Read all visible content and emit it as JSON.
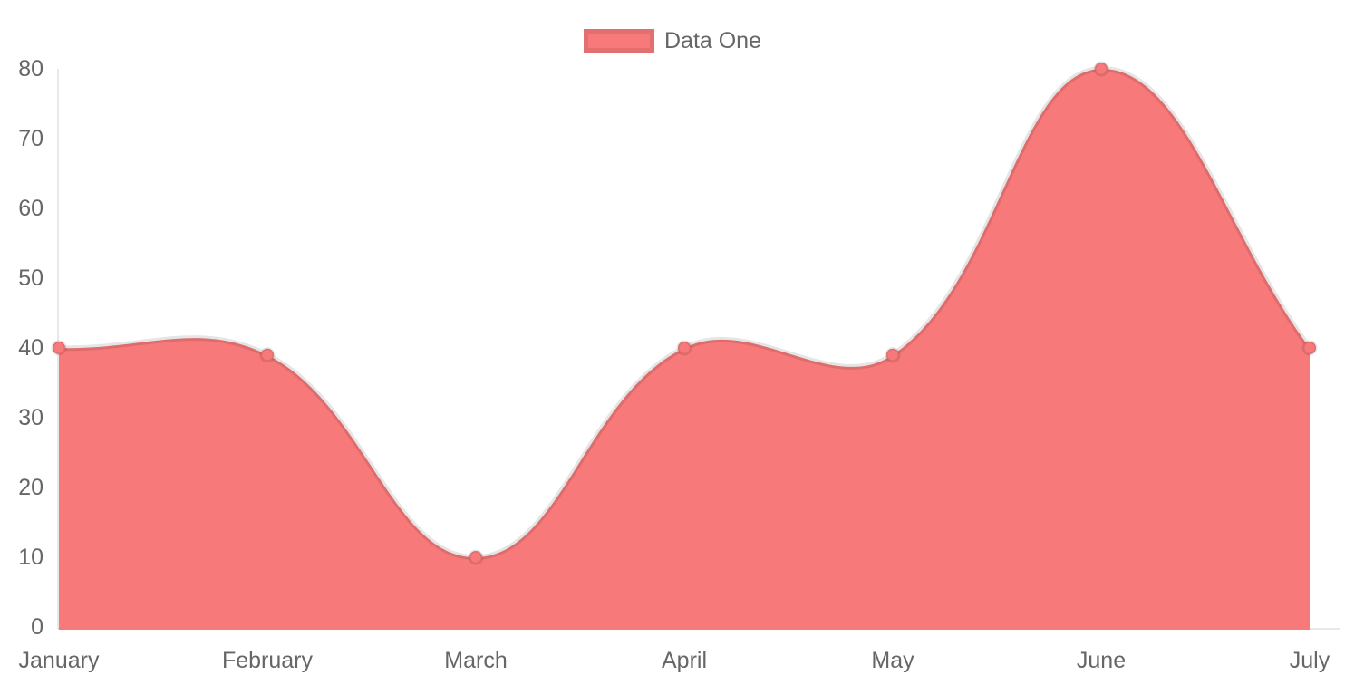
{
  "chart_data": {
    "type": "area",
    "title": "",
    "categories": [
      "January",
      "February",
      "March",
      "April",
      "May",
      "June",
      "July"
    ],
    "series": [
      {
        "name": "Data One",
        "values": [
          40,
          39,
          10,
          40,
          39,
          80,
          40
        ],
        "fill_color": "#f87979",
        "line_color": "rgba(0,0,0,0.1)"
      }
    ],
    "ylim": [
      0,
      80
    ],
    "y_ticks": [
      0,
      10,
      20,
      30,
      40,
      50,
      60,
      70,
      80
    ],
    "grid": false,
    "legend_position": "top",
    "line_tension": 0.4,
    "smooth": true,
    "axis_color": "rgba(0,0,0,0.09)",
    "tick_color": "#666666",
    "xlabel": "",
    "ylabel": ""
  }
}
